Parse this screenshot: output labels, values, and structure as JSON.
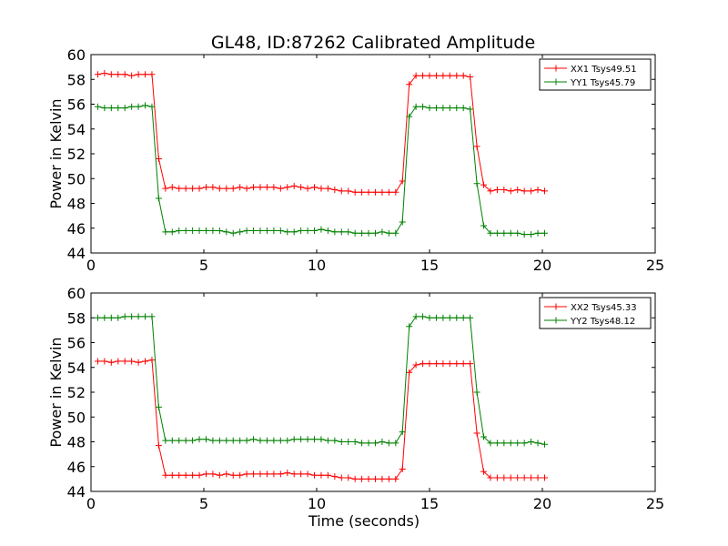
{
  "figure": {
    "title": "GL48, ID:87262 Calibrated Amplitude"
  },
  "chart_data": [
    {
      "type": "line",
      "title": "GL48, ID:87262 Calibrated Amplitude",
      "xlabel": "",
      "ylabel": "Power in Kelvin",
      "xlim": [
        0,
        25
      ],
      "ylim": [
        44,
        60
      ],
      "xticks": [
        0,
        5,
        10,
        15,
        20,
        25
      ],
      "yticks": [
        44,
        46,
        48,
        50,
        52,
        54,
        56,
        58,
        60
      ],
      "grid": false,
      "legend": "top-right",
      "x": [
        0.3,
        0.6,
        0.9,
        1.2,
        1.5,
        1.8,
        2.1,
        2.4,
        2.7,
        3.0,
        3.3,
        3.6,
        3.9,
        4.2,
        4.5,
        4.8,
        5.1,
        5.4,
        5.7,
        6.0,
        6.3,
        6.6,
        6.9,
        7.2,
        7.5,
        7.8,
        8.1,
        8.4,
        8.7,
        9.0,
        9.3,
        9.6,
        9.9,
        10.2,
        10.5,
        10.8,
        11.1,
        11.4,
        11.7,
        12.0,
        12.3,
        12.6,
        12.9,
        13.2,
        13.5,
        13.8,
        14.1,
        14.4,
        14.7,
        15.0,
        15.3,
        15.6,
        15.9,
        16.2,
        16.5,
        16.8,
        17.1,
        17.4,
        17.7,
        18.0,
        18.3,
        18.6,
        18.9,
        19.2,
        19.5,
        19.8,
        20.1
      ],
      "series": [
        {
          "name": "XX1 Tsys49.51",
          "color": "#ff0000",
          "values": [
            58.4,
            58.5,
            58.4,
            58.4,
            58.4,
            58.3,
            58.4,
            58.4,
            58.4,
            51.6,
            49.2,
            49.3,
            49.2,
            49.2,
            49.2,
            49.2,
            49.3,
            49.3,
            49.2,
            49.2,
            49.2,
            49.3,
            49.2,
            49.3,
            49.3,
            49.3,
            49.3,
            49.2,
            49.3,
            49.4,
            49.3,
            49.2,
            49.3,
            49.2,
            49.2,
            49.1,
            49.0,
            49.0,
            48.9,
            48.9,
            48.9,
            48.9,
            48.9,
            48.9,
            48.9,
            49.8,
            57.6,
            58.3,
            58.3,
            58.3,
            58.3,
            58.3,
            58.3,
            58.3,
            58.3,
            58.2,
            52.6,
            49.5,
            49.0,
            49.1,
            49.1,
            49.0,
            49.1,
            49.0,
            49.0,
            49.1,
            49.0
          ]
        },
        {
          "name": "YY1 Tsys45.79",
          "color": "#008000",
          "values": [
            55.8,
            55.7,
            55.7,
            55.7,
            55.7,
            55.8,
            55.8,
            55.9,
            55.8,
            48.4,
            45.7,
            45.7,
            45.8,
            45.8,
            45.8,
            45.8,
            45.8,
            45.8,
            45.8,
            45.7,
            45.6,
            45.7,
            45.8,
            45.8,
            45.8,
            45.8,
            45.8,
            45.8,
            45.7,
            45.7,
            45.8,
            45.8,
            45.8,
            45.9,
            45.8,
            45.7,
            45.7,
            45.7,
            45.6,
            45.6,
            45.6,
            45.6,
            45.7,
            45.6,
            45.6,
            46.5,
            55.0,
            55.8,
            55.8,
            55.7,
            55.7,
            55.7,
            55.7,
            55.7,
            55.7,
            55.6,
            49.6,
            46.2,
            45.6,
            45.6,
            45.6,
            45.6,
            45.6,
            45.5,
            45.5,
            45.6,
            45.6
          ]
        }
      ]
    },
    {
      "type": "line",
      "title": "",
      "xlabel": "Time (seconds)",
      "ylabel": "Power in Kelvin",
      "xlim": [
        0,
        25
      ],
      "ylim": [
        44,
        60
      ],
      "xticks": [
        0,
        5,
        10,
        15,
        20,
        25
      ],
      "yticks": [
        44,
        46,
        48,
        50,
        52,
        54,
        56,
        58,
        60
      ],
      "grid": false,
      "legend": "top-right",
      "x": [
        0.3,
        0.6,
        0.9,
        1.2,
        1.5,
        1.8,
        2.1,
        2.4,
        2.7,
        3.0,
        3.3,
        3.6,
        3.9,
        4.2,
        4.5,
        4.8,
        5.1,
        5.4,
        5.7,
        6.0,
        6.3,
        6.6,
        6.9,
        7.2,
        7.5,
        7.8,
        8.1,
        8.4,
        8.7,
        9.0,
        9.3,
        9.6,
        9.9,
        10.2,
        10.5,
        10.8,
        11.1,
        11.4,
        11.7,
        12.0,
        12.3,
        12.6,
        12.9,
        13.2,
        13.5,
        13.8,
        14.1,
        14.4,
        14.7,
        15.0,
        15.3,
        15.6,
        15.9,
        16.2,
        16.5,
        16.8,
        17.1,
        17.4,
        17.7,
        18.0,
        18.3,
        18.6,
        18.9,
        19.2,
        19.5,
        19.8,
        20.1
      ],
      "series": [
        {
          "name": "XX2 Tsys45.33",
          "color": "#ff0000",
          "values": [
            54.5,
            54.5,
            54.4,
            54.5,
            54.5,
            54.5,
            54.4,
            54.5,
            54.6,
            47.7,
            45.3,
            45.3,
            45.3,
            45.3,
            45.3,
            45.3,
            45.4,
            45.4,
            45.3,
            45.4,
            45.3,
            45.3,
            45.4,
            45.4,
            45.4,
            45.4,
            45.4,
            45.4,
            45.5,
            45.4,
            45.4,
            45.4,
            45.3,
            45.3,
            45.3,
            45.2,
            45.1,
            45.1,
            45.0,
            45.0,
            45.0,
            45.0,
            45.0,
            45.0,
            45.0,
            45.8,
            53.6,
            54.2,
            54.3,
            54.3,
            54.3,
            54.3,
            54.3,
            54.3,
            54.3,
            54.3,
            48.7,
            45.6,
            45.1,
            45.1,
            45.1,
            45.1,
            45.1,
            45.1,
            45.1,
            45.1,
            45.1
          ]
        },
        {
          "name": "YY2 Tsys48.12",
          "color": "#008000",
          "values": [
            58.0,
            58.0,
            58.0,
            58.0,
            58.1,
            58.1,
            58.1,
            58.1,
            58.1,
            50.8,
            48.1,
            48.1,
            48.1,
            48.1,
            48.1,
            48.2,
            48.2,
            48.1,
            48.1,
            48.1,
            48.1,
            48.1,
            48.1,
            48.2,
            48.1,
            48.1,
            48.1,
            48.1,
            48.1,
            48.2,
            48.2,
            48.2,
            48.2,
            48.2,
            48.1,
            48.1,
            48.0,
            48.0,
            48.0,
            47.9,
            47.9,
            47.9,
            48.0,
            47.9,
            47.9,
            48.8,
            57.3,
            58.1,
            58.1,
            58.0,
            58.0,
            58.0,
            58.0,
            58.0,
            58.0,
            58.0,
            52.0,
            48.4,
            47.9,
            47.9,
            47.9,
            47.9,
            47.9,
            47.9,
            48.0,
            47.9,
            47.8
          ]
        }
      ]
    }
  ]
}
